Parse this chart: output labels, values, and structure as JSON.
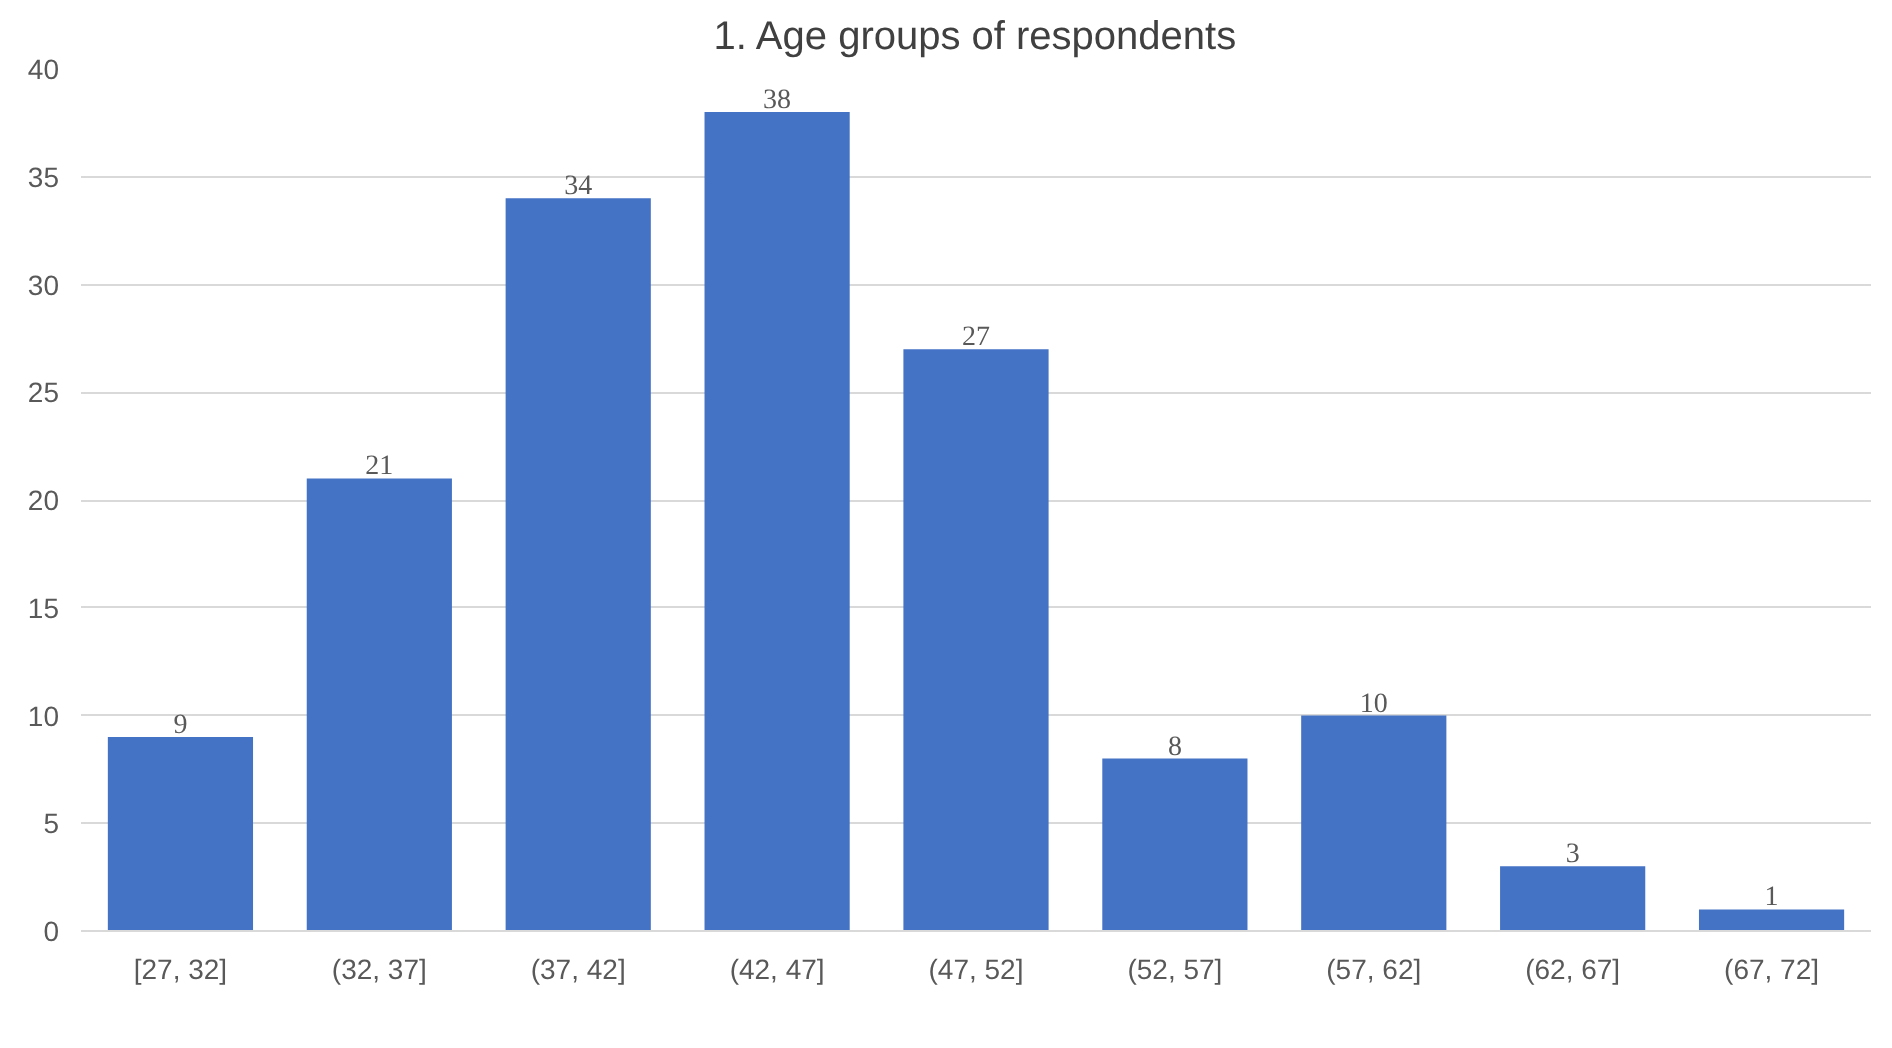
{
  "chart_data": {
    "type": "bar",
    "title": "1. Age groups of respondents",
    "categories": [
      "[27, 32]",
      "(32, 37]",
      "(37, 42]",
      "(42, 47]",
      "(47, 52]",
      "(52, 57]",
      "(57, 62]",
      "(62, 67]",
      "(67, 72]"
    ],
    "values": [
      9,
      21,
      34,
      38,
      27,
      8,
      10,
      3,
      1
    ],
    "color": "#4472c4",
    "ylim": [
      0,
      40
    ],
    "yticks": [
      0,
      5,
      10,
      15,
      20,
      25,
      30,
      35,
      40
    ],
    "grid": "y",
    "data_labels": true
  }
}
